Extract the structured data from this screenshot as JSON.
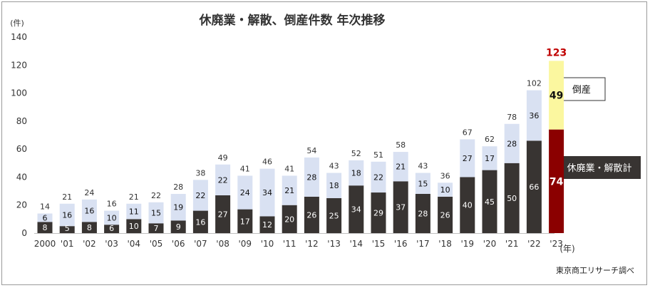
{
  "chart_data": {
    "type": "bar",
    "stacked": true,
    "title": "休廃業・解散、倒産件数 年次推移",
    "ylabel": "(件)",
    "xlabel": "(年)",
    "ylim": [
      0,
      140
    ],
    "yticks": [
      0,
      20,
      40,
      60,
      80,
      100,
      120,
      140
    ],
    "categories": [
      "2000",
      "'01",
      "'02",
      "'03",
      "'04",
      "'05",
      "'06",
      "'07",
      "'08",
      "'09",
      "'10",
      "'11",
      "'12",
      "'13",
      "'14",
      "'15",
      "'16",
      "'17",
      "'18",
      "'19",
      "'20",
      "'21",
      "'22",
      "'23"
    ],
    "series": [
      {
        "name": "休廃業・解散計",
        "color": "#383432",
        "highlight_color": "#8b0000",
        "values": [
          8,
          5,
          8,
          6,
          10,
          7,
          9,
          16,
          27,
          17,
          12,
          20,
          26,
          25,
          34,
          29,
          37,
          28,
          26,
          40,
          45,
          50,
          66,
          74
        ]
      },
      {
        "name": "倒産",
        "color": "#d9e1f2",
        "highlight_color": "#fbf79f",
        "values": [
          6,
          16,
          16,
          10,
          11,
          15,
          19,
          22,
          22,
          24,
          34,
          21,
          28,
          18,
          18,
          22,
          21,
          15,
          10,
          27,
          17,
          28,
          36,
          49
        ]
      }
    ],
    "totals": [
      14,
      21,
      24,
      16,
      21,
      22,
      28,
      38,
      49,
      41,
      46,
      41,
      54,
      43,
      52,
      51,
      58,
      43,
      36,
      67,
      62,
      78,
      102,
      123
    ],
    "total_highlight_color": "#c00000",
    "source": "東京商工リサーチ調べ"
  }
}
